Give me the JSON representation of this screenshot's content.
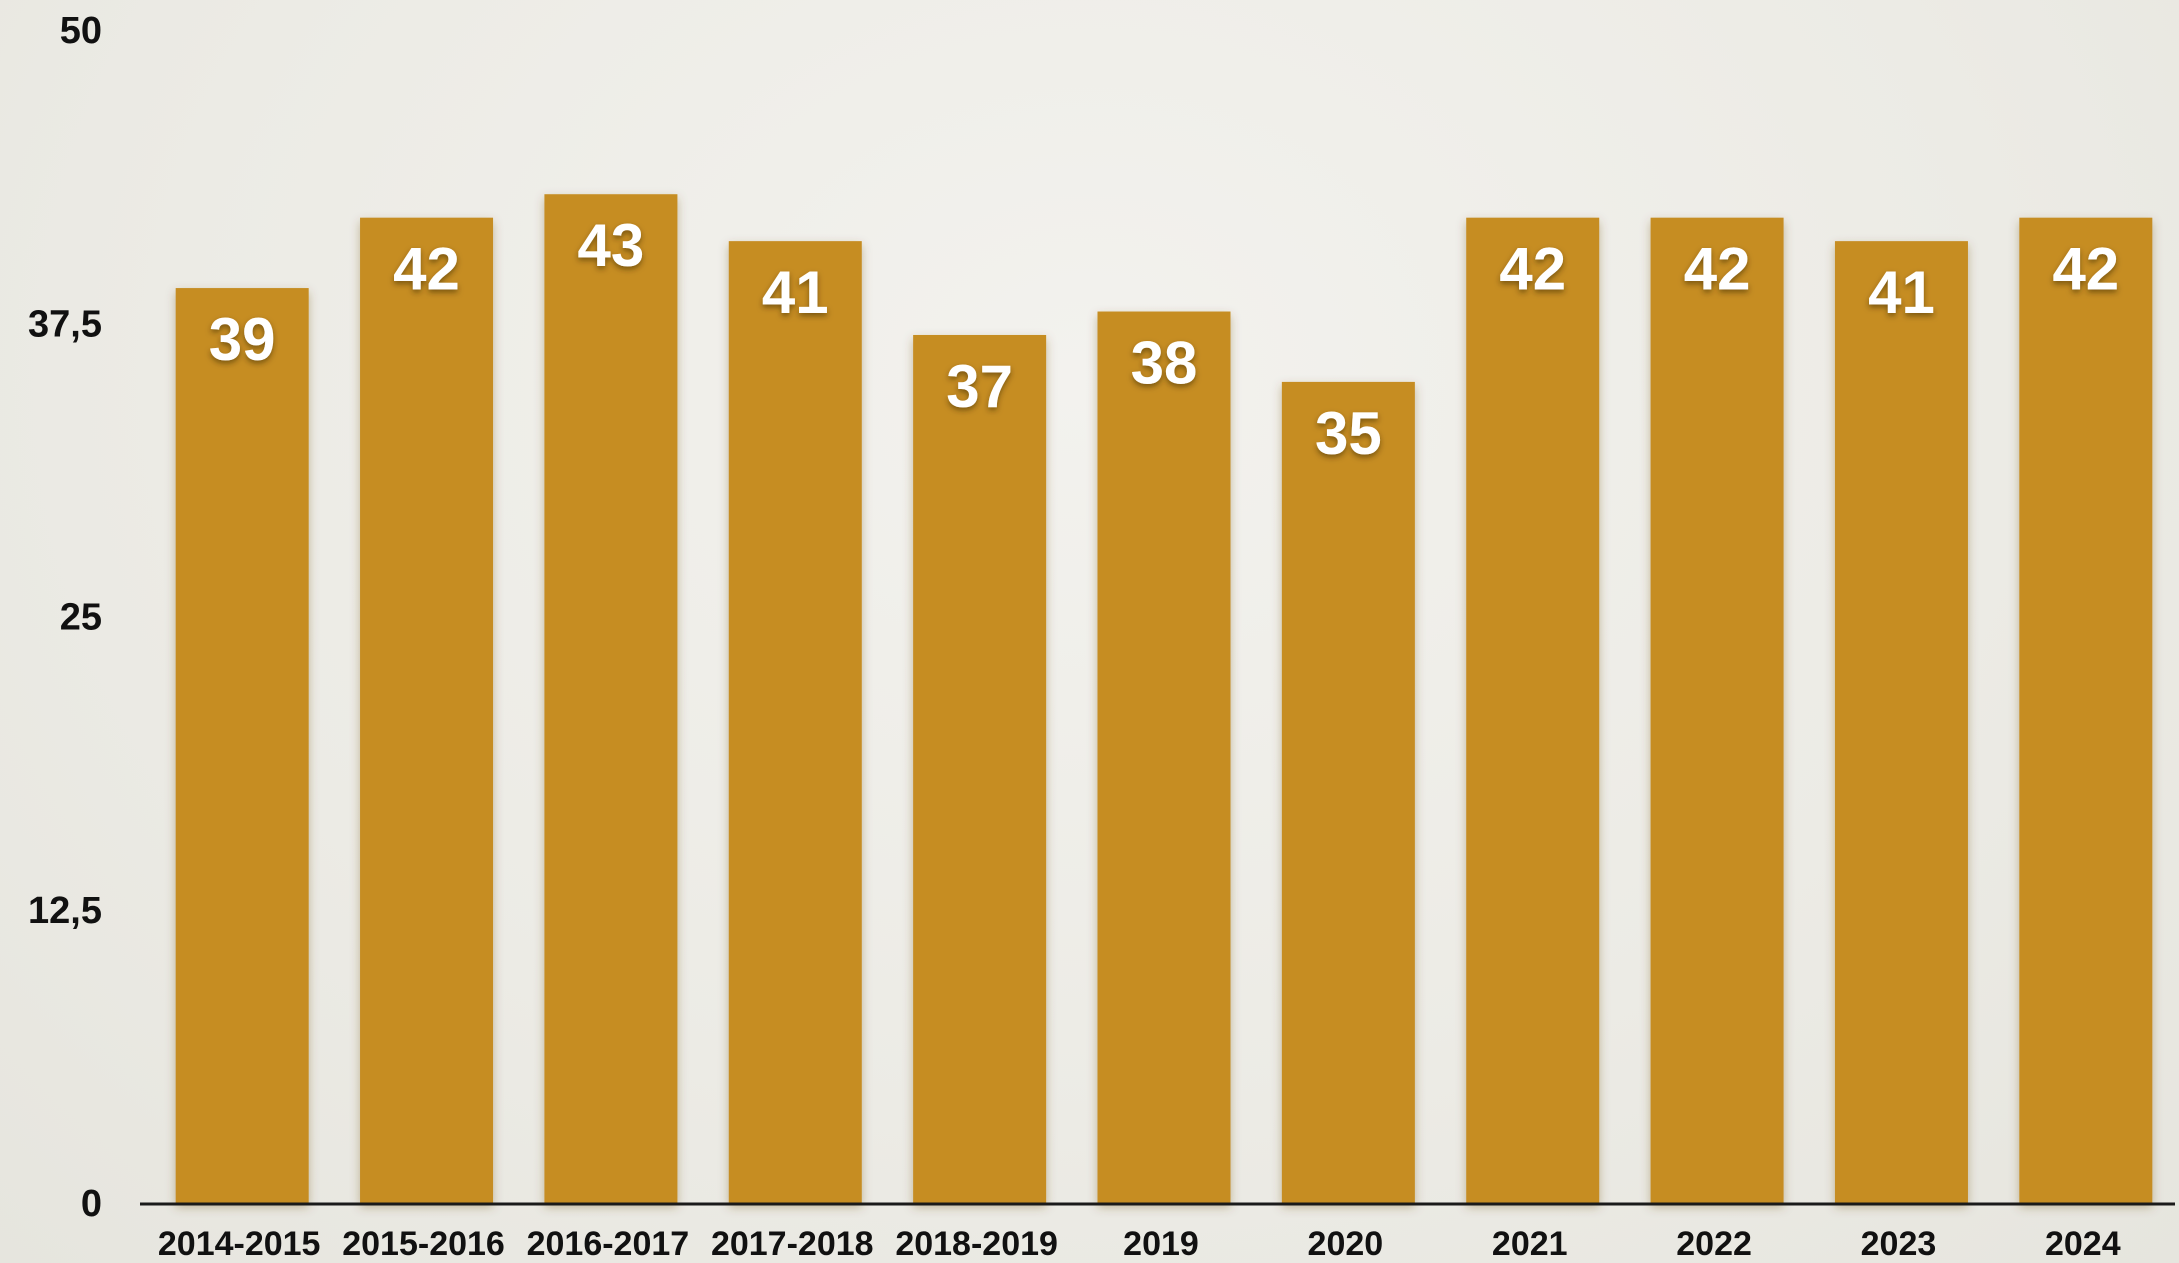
{
  "chart_data": {
    "type": "bar",
    "title": "",
    "xlabel": "",
    "ylabel": "",
    "categories": [
      "2014-2015",
      "2015-2016",
      "2016-2017",
      "2017-2018",
      "2018-2019",
      "2019",
      "2020",
      "2021",
      "2022",
      "2023",
      "2024"
    ],
    "values": [
      39,
      42,
      43,
      41,
      37,
      38,
      35,
      42,
      42,
      41,
      42
    ],
    "value_labels": [
      "39",
      "42",
      "43",
      "41",
      "37",
      "38",
      "35",
      "42",
      "42",
      "41",
      "42"
    ],
    "ylim": [
      0,
      50
    ],
    "yticks": [
      0,
      12.5,
      25,
      37.5,
      50
    ],
    "ytick_labels": [
      "0",
      "12,5",
      "25",
      "37,5",
      "50"
    ],
    "grid": false,
    "legend": "none",
    "colors": {
      "bar": "#c68d23",
      "bar_shadow": "#9c6c14",
      "axis": "#1a1a1a",
      "tick_text": "#111111",
      "value_text": "#ffffff",
      "background": "#ecebe5"
    }
  }
}
